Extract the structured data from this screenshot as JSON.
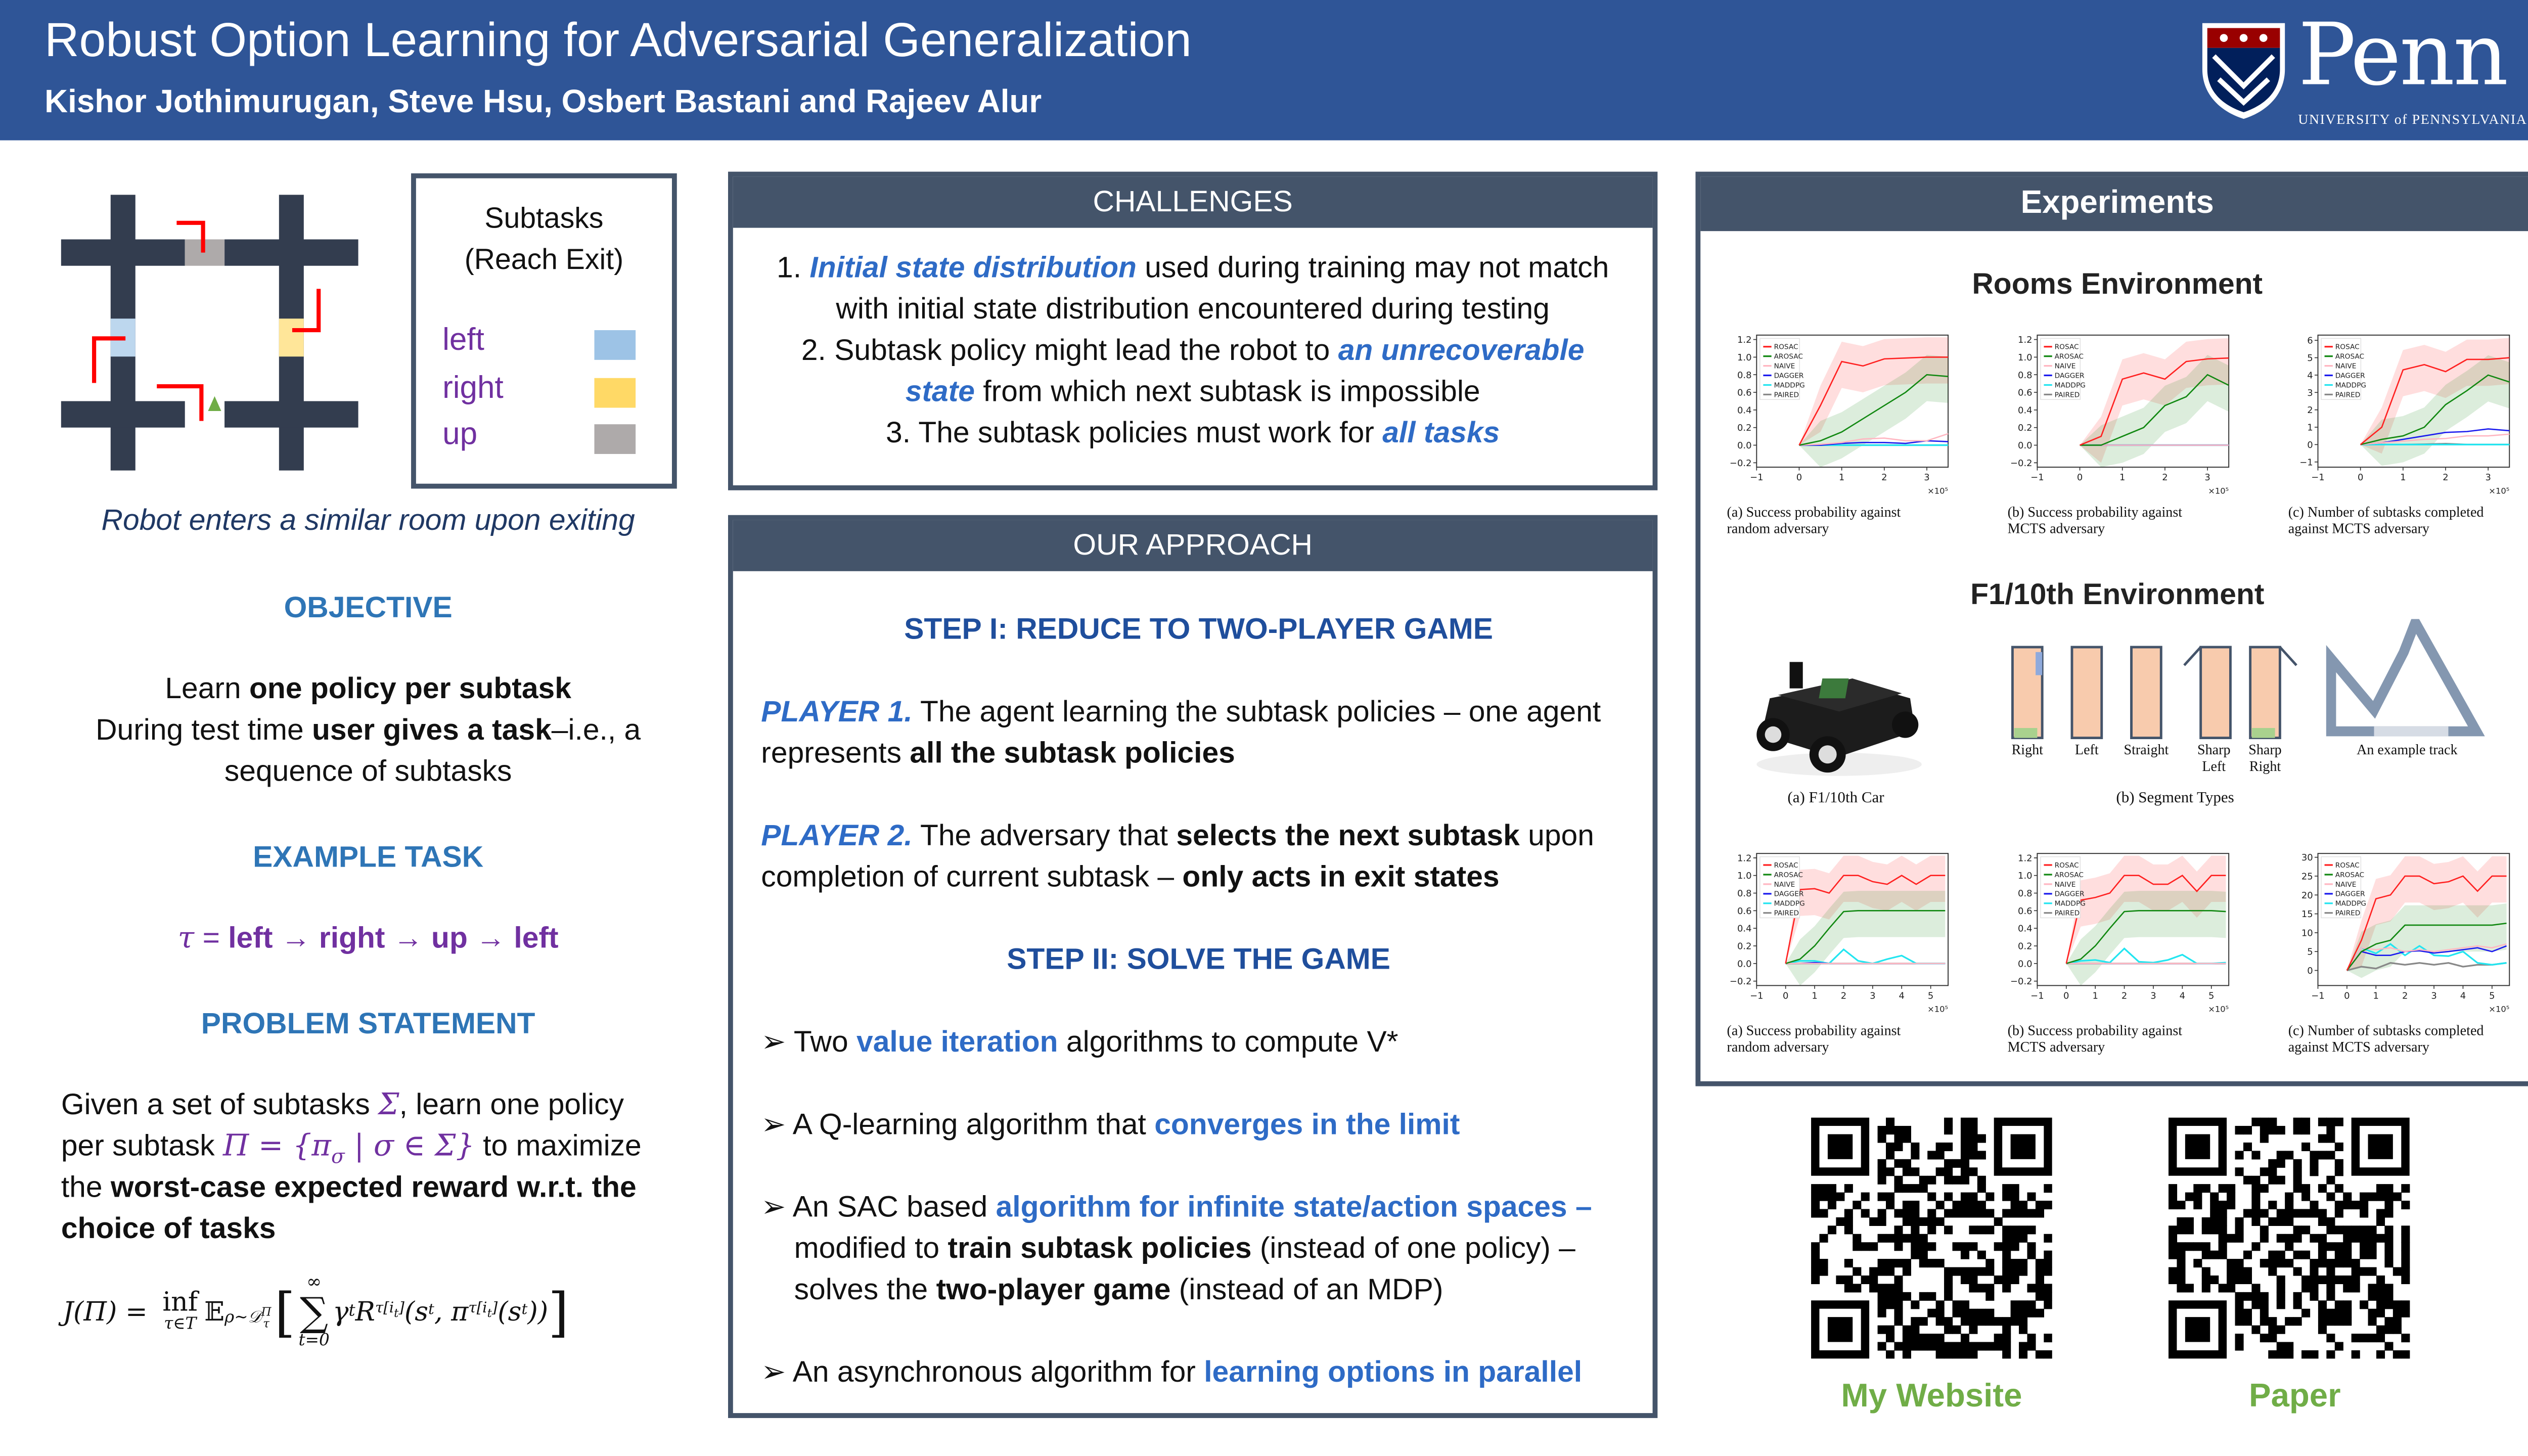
{
  "header": {
    "title": "Robust Option Learning for Adversarial Generalization",
    "authors": "Kishor Jothimurugan, Steve Hsu, Osbert Bastani and Rajeev Alur",
    "logo_word": "Penn",
    "logo_sub": "UNIVERSITY of PENNSYLVANIA",
    "bg_color": "#2F5597"
  },
  "left": {
    "subtasks_title_1": "Subtasks",
    "subtasks_title_2": "(Reach Exit)",
    "subtasks": [
      {
        "label": "left",
        "color": "#9DC3E6"
      },
      {
        "label": "right",
        "color": "#FFD966"
      },
      {
        "label": "up",
        "color": "#AEAAAA"
      }
    ],
    "room_caption": "Robot enters a similar room upon exiting",
    "objective_head": "OBJECTIVE",
    "objective": {
      "a": "Learn ",
      "b": "one policy per subtask",
      "c": "During test time ",
      "d": "user gives a task",
      "e": "–i.e., a",
      "f": "sequence of subtasks"
    },
    "example_head": "EXAMPLE TASK",
    "example": {
      "tau": "τ",
      "eq": " = ",
      "s1": "left",
      "s2": "right",
      "s3": "up",
      "s4": "left",
      "arrow": "→"
    },
    "problem_head": "PROBLEM STATEMENT",
    "problem": {
      "a": "Given a set of subtasks ",
      "sigma": "Σ",
      "b": ", learn one policy",
      "c": "per subtask ",
      "pi_set": "Π = {π",
      "pi_sub": "σ",
      "pi_rest": " | σ ∈ Σ}",
      "d": " to maximize",
      "e": "the ",
      "f": "worst-case expected reward w.r.t. the choice of tasks"
    },
    "formula": {
      "lhs": "J(Π) = ",
      "inf": "inf",
      "inf_sub": "τ∈T",
      "E": "𝔼",
      "E_sub": "ρ∼𝒟",
      "E_sup": "Π",
      "E_subsub": "τ",
      "lb": "[",
      "sum_top": "∞",
      "sum": "∑",
      "sum_bot": "t=0",
      "gamma": "γ",
      "t": "t",
      "R": "R",
      "R_sub": "τ[i",
      "R_subsub": "t",
      "R_close": "]",
      "args": "(s",
      "args_sub": "t",
      ", pi": ", π",
      "pi_sub": "τ[i",
      "pi_close": "]",
      "tail": "(s",
      "tail_sub": "t",
      "end": "))",
      "rb": "]"
    }
  },
  "challenges": {
    "head": "CHALLENGES",
    "i1": {
      "n": "1. ",
      "em": "Initial state distribution",
      "rest1": " used during training may not match",
      "rest2": "with initial state distribution encountered during testing"
    },
    "i2": {
      "n": "2. ",
      "a": "Subtask policy might lead the robot to ",
      "em1": "an unrecoverable",
      "em2": "state",
      "b": " from which next subtask is impossible"
    },
    "i3": {
      "n": "3. ",
      "a": "The subtask policies must work for ",
      "em": "all tasks"
    }
  },
  "approach": {
    "head": "OUR APPROACH",
    "step1": "STEP I: REDUCE TO TWO-PLAYER GAME",
    "p1": {
      "em": "PLAYER 1.",
      "a": " The agent learning the subtask policies – one agent",
      "b": "represents ",
      "c": "all the subtask policies"
    },
    "p2": {
      "em": "PLAYER 2.",
      "a": " The adversary that ",
      "b": "selects the next subtask",
      "c": " upon",
      "d": "completion of current subtask – ",
      "e": "only acts in exit states"
    },
    "step2": "STEP II: SOLVE THE GAME",
    "bullet": "➢",
    "b1": {
      "a": "Two ",
      "em": "value iteration",
      "b": " algorithms to compute V*"
    },
    "b2": {
      "a": "A Q-learning algorithm that ",
      "em": "converges in the limit"
    },
    "b3": {
      "a": "An SAC based ",
      "em": "algorithm for infinite state/action spaces –",
      "b": "modified to ",
      "c": "train subtask policies",
      "d": " (instead of one policy) –",
      "e": "solves the ",
      "f": "two-player game",
      "g": " (instead of an MDP)"
    },
    "b4": {
      "a": "An asynchronous algorithm for ",
      "em": "learning options in parallel"
    }
  },
  "experiments": {
    "head": "Experiments",
    "rooms_title": "Rooms Environment",
    "f1_title": "F1/10th Environment",
    "car_caption": "(a) F1/10th Car",
    "segments_caption": "(b) Segment Types",
    "segment_labels": [
      "Right",
      "Left",
      "Straight",
      "Sharp\nLeft",
      "Sharp\nRight"
    ],
    "track_label": "An example track"
  },
  "chart_data": [
    {
      "type": "line",
      "env": "Rooms",
      "caption": [
        "(a) Success probability against",
        "random adversary"
      ],
      "x_multiplier": "×10⁵",
      "xlim": [
        -1,
        3.5
      ],
      "ylim": [
        -0.25,
        1.25
      ],
      "xticks": [
        -1,
        0,
        1,
        2,
        3
      ],
      "yticks": [
        -0.2,
        0.0,
        0.2,
        0.4,
        0.6,
        0.8,
        1.0,
        1.2
      ],
      "legend": "top-left",
      "x": [
        0,
        0.5,
        1,
        1.5,
        2,
        2.5,
        3,
        3.5
      ],
      "series": [
        {
          "name": "ROSAC",
          "color": "#FF2020",
          "values": [
            0,
            0.45,
            0.95,
            0.9,
            0.98,
            0.99,
            1.0,
            1.0
          ]
        },
        {
          "name": "AROSAC",
          "color": "#118811",
          "values": [
            0,
            0.05,
            0.15,
            0.3,
            0.45,
            0.6,
            0.8,
            0.78
          ]
        },
        {
          "name": "NAIVE",
          "color": "#FFB6C1",
          "values": [
            0,
            0.01,
            0.03,
            0.07,
            0.08,
            0.05,
            0.05,
            0.13
          ]
        },
        {
          "name": "DAGGER",
          "color": "#1A1AEE",
          "values": [
            0,
            0,
            0.02,
            0.03,
            0.03,
            0.02,
            0.05,
            0.04
          ]
        },
        {
          "name": "MADDPG",
          "color": "#22E5F0",
          "values": [
            0,
            0,
            0,
            0,
            0,
            0,
            0,
            0
          ]
        },
        {
          "name": "PAIRED",
          "color": "#888888",
          "values": [
            0,
            0,
            0,
            0,
            0,
            0,
            0,
            0
          ]
        }
      ]
    },
    {
      "type": "line",
      "env": "Rooms",
      "caption": [
        "(b) Success probability against",
        "MCTS adversary"
      ],
      "x_multiplier": "×10⁵",
      "xlim": [
        -1,
        3.5
      ],
      "ylim": [
        -0.25,
        1.25
      ],
      "xticks": [
        -1,
        0,
        1,
        2,
        3
      ],
      "yticks": [
        -0.2,
        0.0,
        0.2,
        0.4,
        0.6,
        0.8,
        1.0,
        1.2
      ],
      "legend": "top-left",
      "x": [
        0,
        0.5,
        1,
        1.5,
        2,
        2.5,
        3,
        3.5
      ],
      "series": [
        {
          "name": "ROSAC",
          "color": "#FF2020",
          "values": [
            0,
            0.1,
            0.75,
            0.82,
            0.75,
            0.95,
            0.98,
            0.99
          ]
        },
        {
          "name": "AROSAC",
          "color": "#118811",
          "values": [
            0,
            0,
            0.1,
            0.2,
            0.45,
            0.55,
            0.8,
            0.68
          ]
        },
        {
          "name": "NAIVE",
          "color": "#FFB6C1",
          "values": [
            0,
            0,
            0,
            0,
            0,
            0,
            0,
            0
          ]
        },
        {
          "name": "DAGGER",
          "color": "#1A1AEE",
          "values": [
            0,
            0,
            0,
            0,
            0,
            0,
            0,
            0
          ]
        },
        {
          "name": "MADDPG",
          "color": "#22E5F0",
          "values": [
            0,
            0,
            0,
            0,
            0,
            0,
            0,
            0
          ]
        },
        {
          "name": "PAIRED",
          "color": "#888888",
          "values": [
            0,
            0,
            0,
            0,
            0,
            0,
            0,
            0
          ]
        }
      ]
    },
    {
      "type": "line",
      "env": "Rooms",
      "caption": [
        "(c) Number of subtasks completed",
        "against MCTS adversary"
      ],
      "x_multiplier": "×10⁵",
      "xlim": [
        -1,
        3.5
      ],
      "ylim": [
        -1.3,
        6.3
      ],
      "xticks": [
        -1,
        0,
        1,
        2,
        3
      ],
      "yticks": [
        -1,
        0,
        1,
        2,
        3,
        4,
        5,
        6
      ],
      "legend": "top-left",
      "x": [
        0,
        0.5,
        1,
        1.5,
        2,
        2.5,
        3,
        3.5
      ],
      "series": [
        {
          "name": "ROSAC",
          "color": "#FF2020",
          "values": [
            0,
            1.0,
            4.3,
            4.6,
            4.2,
            4.9,
            4.9,
            5.0
          ]
        },
        {
          "name": "AROSAC",
          "color": "#118811",
          "values": [
            0,
            0.3,
            0.5,
            1.0,
            2.3,
            3.1,
            4.0,
            3.6
          ]
        },
        {
          "name": "NAIVE",
          "color": "#FFB6C1",
          "values": [
            0,
            0.1,
            0.2,
            0.3,
            0.35,
            0.5,
            0.5,
            0.6
          ]
        },
        {
          "name": "DAGGER",
          "color": "#1A1AEE",
          "values": [
            0,
            0.1,
            0.3,
            0.5,
            0.7,
            0.75,
            0.9,
            0.8
          ]
        },
        {
          "name": "MADDPG",
          "color": "#22E5F0",
          "values": [
            0,
            0,
            0,
            0,
            0,
            0,
            0,
            0
          ]
        },
        {
          "name": "PAIRED",
          "color": "#888888",
          "values": [
            0,
            0,
            0,
            0.02,
            0.05,
            0,
            0,
            0
          ]
        }
      ]
    },
    {
      "type": "line",
      "env": "F1/10th",
      "caption": [
        "(a) Success probability against",
        "random adversary"
      ],
      "x_multiplier": "×10⁵",
      "xlim": [
        -1,
        5.6
      ],
      "ylim": [
        -0.25,
        1.25
      ],
      "xticks": [
        -1,
        0,
        1,
        2,
        3,
        4,
        5
      ],
      "yticks": [
        -0.2,
        0.0,
        0.2,
        0.4,
        0.6,
        0.8,
        1.0,
        1.2
      ],
      "legend": "top-left",
      "x": [
        0,
        0.5,
        1,
        1.5,
        2,
        2.5,
        3,
        3.5,
        4,
        4.5,
        5,
        5.5
      ],
      "series": [
        {
          "name": "ROSAC",
          "color": "#FF2020",
          "values": [
            0,
            0.84,
            0.85,
            0.8,
            1.0,
            1.0,
            0.93,
            0.9,
            1.0,
            0.9,
            1.0,
            1.0
          ]
        },
        {
          "name": "AROSAC",
          "color": "#118811",
          "values": [
            0,
            0.05,
            0.2,
            0.4,
            0.59,
            0.6,
            0.6,
            0.6,
            0.6,
            0.6,
            0.6,
            0.6
          ]
        },
        {
          "name": "NAIVE",
          "color": "#FFB6C1",
          "values": [
            0,
            0,
            0,
            0,
            0,
            0,
            0,
            0,
            0,
            0,
            0,
            0
          ]
        },
        {
          "name": "DAGGER",
          "color": "#1A1AEE",
          "values": [
            0,
            0,
            0.01,
            0,
            0,
            0,
            0,
            0,
            0,
            0,
            0,
            0
          ]
        },
        {
          "name": "MADDPG",
          "color": "#22E5F0",
          "values": [
            0,
            0.03,
            0.03,
            0,
            0.16,
            0.03,
            0,
            0.05,
            0.09,
            0,
            0,
            0
          ]
        },
        {
          "name": "PAIRED",
          "color": "#888888",
          "values": [
            0,
            0,
            0,
            0,
            0,
            0,
            0,
            0,
            0,
            0,
            0,
            0
          ]
        }
      ]
    },
    {
      "type": "line",
      "env": "F1/10th",
      "caption": [
        "(b) Success probability against",
        "MCTS adversary"
      ],
      "x_multiplier": "×10⁵",
      "xlim": [
        -1,
        5.6
      ],
      "ylim": [
        -0.25,
        1.25
      ],
      "xticks": [
        -1,
        0,
        1,
        2,
        3,
        4,
        5
      ],
      "yticks": [
        -0.2,
        0.0,
        0.2,
        0.4,
        0.6,
        0.8,
        1.0,
        1.2
      ],
      "legend": "top-left",
      "x": [
        0,
        0.5,
        1,
        1.5,
        2,
        2.5,
        3,
        3.5,
        4,
        4.5,
        5,
        5.5
      ],
      "series": [
        {
          "name": "ROSAC",
          "color": "#FF2020",
          "values": [
            0,
            0.72,
            0.75,
            0.8,
            1.0,
            1.0,
            0.9,
            0.9,
            1.0,
            0.82,
            1.0,
            1.0
          ]
        },
        {
          "name": "AROSAC",
          "color": "#118811",
          "values": [
            0,
            0.05,
            0.2,
            0.4,
            0.59,
            0.6,
            0.6,
            0.6,
            0.6,
            0.6,
            0.6,
            0.59
          ]
        },
        {
          "name": "NAIVE",
          "color": "#FFB6C1",
          "values": [
            0,
            0,
            0,
            0,
            0,
            0,
            0,
            0,
            0,
            0,
            0,
            0
          ]
        },
        {
          "name": "DAGGER",
          "color": "#1A1AEE",
          "values": [
            0,
            0,
            0,
            0,
            0,
            0,
            0,
            0,
            0,
            0,
            0,
            0
          ]
        },
        {
          "name": "MADDPG",
          "color": "#22E5F0",
          "values": [
            0,
            0.03,
            0.04,
            0.01,
            0.17,
            0.02,
            0.01,
            0.04,
            0.1,
            0,
            0,
            0.01
          ]
        },
        {
          "name": "PAIRED",
          "color": "#888888",
          "values": [
            0,
            0,
            0,
            0,
            0,
            0,
            0,
            0,
            0,
            0,
            0,
            0
          ]
        }
      ]
    },
    {
      "type": "line",
      "env": "F1/10th",
      "caption": [
        "(c) Number of subtasks completed",
        "against MCTS adversary"
      ],
      "x_multiplier": "×10⁵",
      "xlim": [
        -1,
        5.6
      ],
      "ylim": [
        -4,
        31
      ],
      "xticks": [
        -1,
        0,
        1,
        2,
        3,
        4,
        5
      ],
      "yticks": [
        0,
        5,
        10,
        15,
        20,
        25,
        30
      ],
      "legend": "top-left",
      "x": [
        0,
        0.5,
        1,
        1.5,
        2,
        2.5,
        3,
        3.5,
        4,
        4.5,
        5,
        5.5
      ],
      "series": [
        {
          "name": "ROSAC",
          "color": "#FF2020",
          "values": [
            0,
            8,
            19,
            20,
            25,
            25,
            23,
            23.5,
            25,
            21,
            25,
            25
          ]
        },
        {
          "name": "AROSAC",
          "color": "#118811",
          "values": [
            0,
            5,
            7,
            8,
            12,
            12,
            12,
            12,
            12,
            12,
            12,
            12.5
          ]
        },
        {
          "name": "NAIVE",
          "color": "#FFB6C1",
          "values": [
            0,
            6,
            5.5,
            6,
            5,
            5.5,
            5,
            5.5,
            6,
            6.5,
            6,
            7
          ]
        },
        {
          "name": "DAGGER",
          "color": "#1A1AEE",
          "values": [
            0,
            5,
            4,
            4,
            5,
            5.2,
            4.6,
            5,
            5.5,
            6,
            5,
            6.5
          ]
        },
        {
          "name": "MADDPG",
          "color": "#22E5F0",
          "values": [
            0,
            6,
            4.5,
            7,
            4,
            6.5,
            4,
            3.8,
            5,
            2,
            1.5,
            2
          ]
        },
        {
          "name": "PAIRED",
          "color": "#888888",
          "values": [
            0,
            1,
            0.5,
            2,
            1.5,
            2,
            1.5,
            2,
            1,
            1.5,
            1.5,
            2
          ]
        }
      ]
    }
  ],
  "qr": {
    "website_label": "My Website",
    "paper_label": "Paper",
    "label_color": "#70AD47"
  }
}
